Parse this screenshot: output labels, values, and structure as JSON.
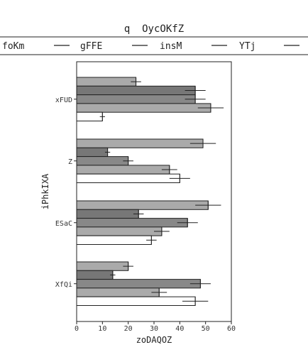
{
  "chart_data": {
    "type": "bar",
    "orientation": "horizontal",
    "title": "q  OycOKfZ",
    "xlabel": "zoDAQOZ",
    "ylabel": "iPhkIXA",
    "xlim": [
      0,
      60
    ],
    "xticks": [
      0,
      10,
      20,
      30,
      40,
      50,
      60
    ],
    "grid": false,
    "legend_position": "top",
    "categories": [
      "xFUD",
      "Z",
      "ESaC",
      "XfQi"
    ],
    "series": [
      {
        "name": "foKm",
        "color": "#ffffff",
        "values": [
          10,
          40,
          29,
          46
        ],
        "errors": [
          1,
          4,
          2,
          5
        ]
      },
      {
        "name": "gFFE",
        "color": "#aaaaaa",
        "values": [
          52,
          36,
          33,
          32
        ],
        "errors": [
          5,
          3,
          3,
          3
        ]
      },
      {
        "name": "insM",
        "color": "#888888",
        "values": [
          46,
          20,
          43,
          48
        ],
        "errors": [
          4,
          2,
          4,
          4
        ]
      },
      {
        "name": "YTj",
        "color": "#777777",
        "values": [
          46,
          12,
          24,
          14
        ],
        "errors": [
          4,
          1,
          2,
          1
        ]
      },
      {
        "name": "",
        "color": "#aaaaaa",
        "values": [
          23,
          49,
          51,
          20
        ],
        "errors": [
          2,
          5,
          5,
          2
        ]
      }
    ]
  }
}
